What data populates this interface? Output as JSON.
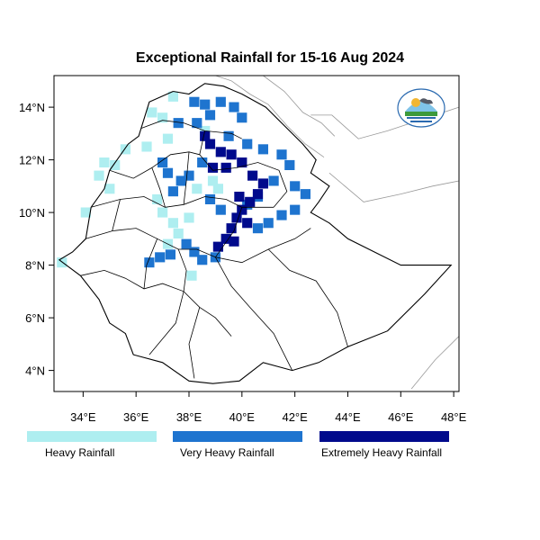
{
  "title": "Exceptional Rainfall for 15-16 Aug 2024",
  "x_ticks": [
    "34°E",
    "36°E",
    "38°E",
    "40°E",
    "42°E",
    "44°E",
    "46°E",
    "48°E"
  ],
  "y_ticks": [
    "14°N",
    "12°N",
    "10°N",
    "8°N",
    "6°N",
    "4°N"
  ],
  "x_tick_values": [
    34,
    36,
    38,
    40,
    42,
    44,
    46,
    48
  ],
  "y_tick_values": [
    14,
    12,
    10,
    8,
    6,
    4
  ],
  "lon_range": [
    32.9,
    48.2
  ],
  "lat_range": [
    3.2,
    15.2
  ],
  "legend": [
    {
      "label": "Heavy Rainfall",
      "color": "#aeeef0"
    },
    {
      "label": "Very Heavy Rainfall",
      "color": "#1e74cf"
    },
    {
      "label": "Extremely Heavy Rainfall",
      "color": "#000a8c"
    }
  ],
  "colors": {
    "heavy": "#aeeef0",
    "very_heavy": "#1e74cf",
    "extremely_heavy": "#000a8c",
    "border": "#000000",
    "outer_border": "#999999"
  },
  "rainfall_zones": [
    {
      "category": "heavy",
      "cells": [
        [
          36.6,
          13.8
        ],
        [
          37.0,
          13.6
        ],
        [
          37.4,
          14.4
        ],
        [
          37.2,
          12.8
        ],
        [
          36.4,
          12.5
        ],
        [
          35.6,
          12.4
        ],
        [
          35.2,
          11.8
        ],
        [
          34.8,
          11.9
        ],
        [
          34.6,
          11.4
        ],
        [
          35.0,
          10.9
        ],
        [
          34.1,
          10.0
        ],
        [
          33.2,
          8.1
        ],
        [
          36.8,
          10.5
        ],
        [
          37.0,
          10.0
        ],
        [
          37.4,
          9.6
        ],
        [
          37.6,
          9.2
        ],
        [
          37.2,
          8.8
        ],
        [
          38.0,
          9.8
        ],
        [
          38.3,
          10.9
        ],
        [
          38.9,
          11.2
        ],
        [
          39.1,
          10.9
        ],
        [
          38.1,
          7.6
        ],
        [
          38.6,
          13.1
        ]
      ]
    },
    {
      "category": "very_heavy",
      "cells": [
        [
          38.2,
          14.2
        ],
        [
          38.6,
          14.1
        ],
        [
          39.2,
          14.2
        ],
        [
          39.7,
          14.0
        ],
        [
          40.0,
          13.6
        ],
        [
          38.8,
          13.7
        ],
        [
          38.3,
          13.4
        ],
        [
          37.6,
          13.4
        ],
        [
          39.5,
          12.9
        ],
        [
          40.2,
          12.6
        ],
        [
          40.8,
          12.4
        ],
        [
          41.5,
          12.2
        ],
        [
          41.8,
          11.8
        ],
        [
          41.2,
          11.2
        ],
        [
          42.0,
          11.0
        ],
        [
          42.4,
          10.7
        ],
        [
          42.0,
          10.1
        ],
        [
          41.5,
          9.9
        ],
        [
          41.0,
          9.6
        ],
        [
          40.6,
          9.4
        ],
        [
          38.5,
          11.9
        ],
        [
          38.0,
          11.4
        ],
        [
          37.7,
          11.2
        ],
        [
          37.4,
          10.8
        ],
        [
          38.8,
          10.5
        ],
        [
          39.2,
          10.1
        ],
        [
          37.3,
          8.4
        ],
        [
          36.9,
          8.3
        ],
        [
          36.5,
          8.1
        ],
        [
          38.5,
          8.2
        ],
        [
          39.0,
          8.3
        ],
        [
          37.9,
          8.8
        ],
        [
          38.2,
          8.5
        ],
        [
          40.2,
          10.3
        ],
        [
          40.6,
          10.6
        ],
        [
          37.0,
          11.9
        ],
        [
          37.2,
          11.5
        ]
      ]
    },
    {
      "category": "extremely_heavy",
      "cells": [
        [
          38.8,
          12.6
        ],
        [
          39.2,
          12.3
        ],
        [
          39.6,
          12.2
        ],
        [
          40.0,
          11.9
        ],
        [
          39.4,
          11.7
        ],
        [
          40.4,
          11.4
        ],
        [
          40.8,
          11.1
        ],
        [
          40.6,
          10.7
        ],
        [
          40.3,
          10.4
        ],
        [
          40.0,
          10.1
        ],
        [
          39.8,
          9.8
        ],
        [
          39.6,
          9.4
        ],
        [
          39.4,
          9.0
        ],
        [
          39.1,
          8.7
        ],
        [
          39.7,
          8.9
        ],
        [
          40.2,
          9.6
        ],
        [
          39.9,
          10.6
        ],
        [
          38.9,
          11.7
        ],
        [
          38.6,
          12.9
        ]
      ]
    }
  ]
}
